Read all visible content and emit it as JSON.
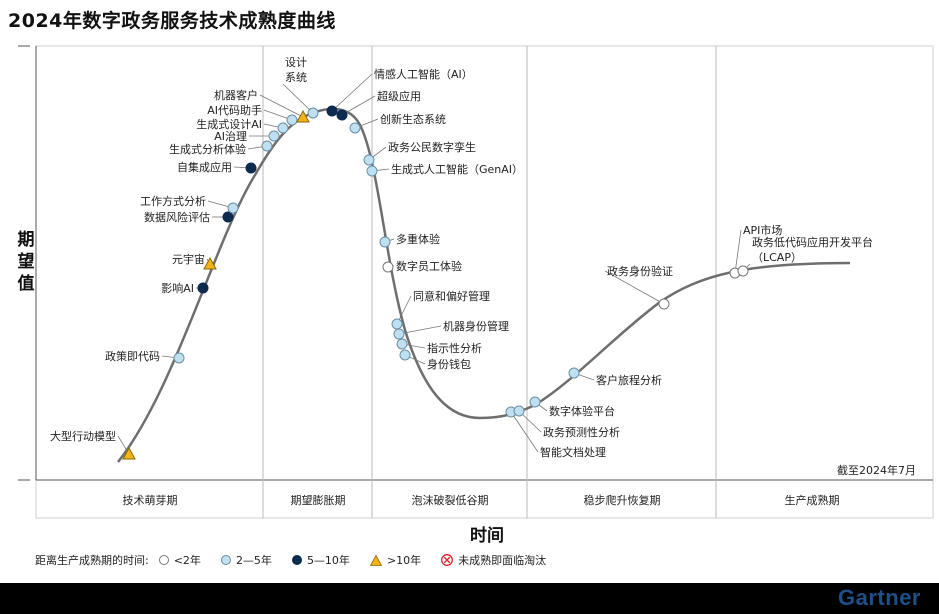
{
  "title": "2024年数字政务服务技术成熟度曲线",
  "y_axis_label": "期望值",
  "x_axis_label": "时间",
  "as_of": "截至2024年7月",
  "brand": "Gartner",
  "phases": [
    "技术萌芽期",
    "期望膨胀期",
    "泡沫破裂低谷期",
    "稳步爬升恢复期",
    "生产成熟期"
  ],
  "legend": {
    "label": "距离生产成熟期的时间:",
    "items": [
      {
        "label": "<2年",
        "symbol": "white-circle"
      },
      {
        "label": "2—5年",
        "symbol": "light-blue-circle"
      },
      {
        "label": "5—10年",
        "symbol": "dark-navy-circle"
      },
      {
        "label": ">10年",
        "symbol": "yellow-triangle"
      },
      {
        "label": "未成熟即面临淘汰",
        "symbol": "red-x-circle"
      }
    ]
  },
  "colors": {
    "white_marker": "#ffffff",
    "light_blue_marker": "#bfe0f0",
    "dark_navy_marker": "#0d2a4f",
    "yellow_triangle": "#f3b319",
    "obsolete_red": "#d9282f",
    "curve": "#6e6e6e",
    "brand": "#1e4f88"
  },
  "technologies": [
    {
      "name": "大型行动模型",
      "type": "triangle"
    },
    {
      "name": "政策即代码",
      "type": "light"
    },
    {
      "name": "影响AI",
      "type": "dark"
    },
    {
      "name": "元宇宙",
      "type": "triangle"
    },
    {
      "name": "数据风险评估",
      "type": "dark"
    },
    {
      "name": "工作方式分析",
      "type": "light"
    },
    {
      "name": "自集成应用",
      "type": "dark"
    },
    {
      "name": "生成式分析体验",
      "type": "light"
    },
    {
      "name": "AI治理",
      "type": "light"
    },
    {
      "name": "生成式设计AI",
      "type": "light"
    },
    {
      "name": "AI代码助手",
      "type": "light"
    },
    {
      "name": "机器客户",
      "type": "triangle"
    },
    {
      "name": "设计系统",
      "type": "light"
    },
    {
      "name": "情感人工智能（AI）",
      "type": "dark"
    },
    {
      "name": "超级应用",
      "type": "dark"
    },
    {
      "name": "创新生态系统",
      "type": "light"
    },
    {
      "name": "政务公民数字孪生",
      "type": "light"
    },
    {
      "name": "生成式人工智能（GenAI）",
      "type": "light"
    },
    {
      "name": "多重体验",
      "type": "light"
    },
    {
      "name": "数字员工体验",
      "type": "white"
    },
    {
      "name": "同意和偏好管理",
      "type": "light"
    },
    {
      "name": "机器身份管理",
      "type": "light"
    },
    {
      "name": "指示性分析",
      "type": "light"
    },
    {
      "name": "身份钱包",
      "type": "light"
    },
    {
      "name": "智能文档处理",
      "type": "light"
    },
    {
      "name": "政务预测性分析",
      "type": "light"
    },
    {
      "name": "数字体验平台",
      "type": "light"
    },
    {
      "name": "客户旅程分析",
      "type": "light"
    },
    {
      "name": "政务身份验证",
      "type": "white"
    },
    {
      "name": "API市场",
      "type": "white"
    },
    {
      "name": "政务低代码应用开发平台（LCAP）",
      "type": "white"
    }
  ]
}
